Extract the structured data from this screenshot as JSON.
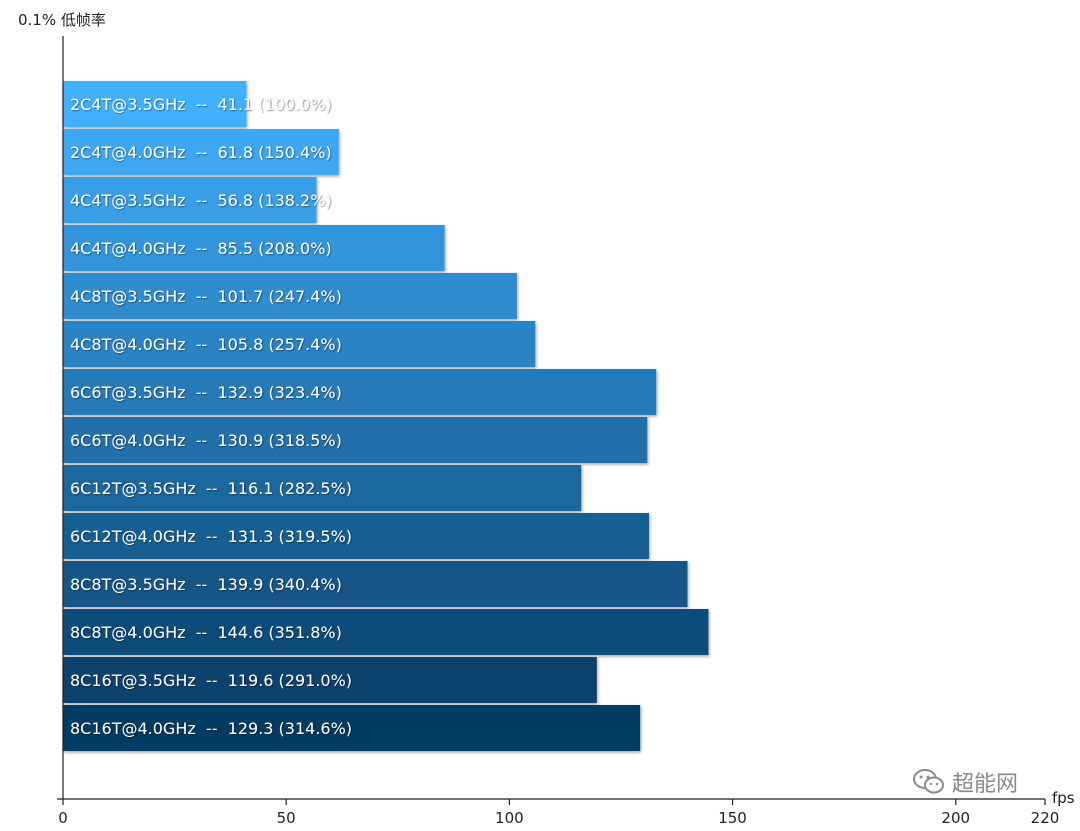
{
  "chart_data": {
    "type": "bar",
    "orientation": "horizontal",
    "ylabel": "0.1% 低帧率",
    "xlabel": "fps",
    "xlim": [
      0,
      220
    ],
    "xticks": [
      0,
      50,
      100,
      150,
      200,
      220
    ],
    "categories": [
      "2C4T@3.5GHz",
      "2C4T@4.0GHz",
      "4C4T@3.5GHz",
      "4C4T@4.0GHz",
      "4C8T@3.5GHz",
      "4C8T@4.0GHz",
      "6C6T@3.5GHz",
      "6C6T@4.0GHz",
      "6C12T@3.5GHz",
      "6C12T@4.0GHz",
      "8C8T@3.5GHz",
      "8C8T@4.0GHz",
      "8C16T@3.5GHz",
      "8C16T@4.0GHz"
    ],
    "values": [
      41.1,
      61.8,
      56.8,
      85.5,
      101.7,
      105.8,
      132.9,
      130.9,
      116.1,
      131.3,
      139.9,
      144.6,
      119.6,
      129.3
    ],
    "labels": [
      "2C4T@3.5GHz  --  41.1 (100.0%)",
      "2C4T@4.0GHz  --  61.8 (150.4%)",
      "4C4T@3.5GHz  --  56.8 (138.2%)",
      "4C4T@4.0GHz  --  85.5 (208.0%)",
      "4C8T@3.5GHz  --  101.7 (247.4%)",
      "4C8T@4.0GHz  --  105.8 (257.4%)",
      "6C6T@3.5GHz  --  132.9 (323.4%)",
      "6C6T@4.0GHz  --  130.9 (318.5%)",
      "6C12T@3.5GHz  --  116.1 (282.5%)",
      "6C12T@4.0GHz  --  131.3 (319.5%)",
      "8C8T@3.5GHz  --  139.9 (340.4%)",
      "8C8T@4.0GHz  --  144.6 (351.8%)",
      "8C16T@3.5GHz  --  119.6 (291.0%)",
      "8C16T@4.0GHz  --  129.3 (314.6%)"
    ],
    "colors": {
      "start": "#40b0ff",
      "end": "#063a62",
      "axis": "#222222"
    },
    "grid": false,
    "legend": "none"
  },
  "watermark": "超能网"
}
